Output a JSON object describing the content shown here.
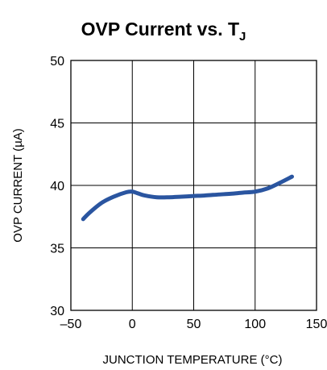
{
  "chart_data": {
    "type": "line",
    "title": "OVP Current vs. T",
    "title_subscript": "J",
    "xlabel": "JUNCTION TEMPERATURE (°C)",
    "ylabel": "OVP CURRENT (µA)",
    "xlim": [
      -50,
      150
    ],
    "ylim": [
      30,
      50
    ],
    "xticks": [
      -50,
      0,
      50,
      100,
      150
    ],
    "yticks": [
      30,
      35,
      40,
      45,
      50
    ],
    "xtick_labels": [
      "–50",
      "0",
      "50",
      "100",
      "150"
    ],
    "ytick_labels": [
      "30",
      "35",
      "40",
      "45",
      "50"
    ],
    "grid": true,
    "line_color": "#2a55a0",
    "series": [
      {
        "x": [
          -40,
          -35,
          -25,
          -15,
          -5,
          0,
          5,
          10,
          20,
          30,
          40,
          50,
          60,
          70,
          80,
          90,
          100,
          110,
          120,
          130
        ],
        "y": [
          37.3,
          37.8,
          38.6,
          39.1,
          39.45,
          39.5,
          39.35,
          39.2,
          39.05,
          39.05,
          39.1,
          39.15,
          39.2,
          39.27,
          39.33,
          39.42,
          39.5,
          39.75,
          40.2,
          40.7
        ]
      }
    ]
  }
}
